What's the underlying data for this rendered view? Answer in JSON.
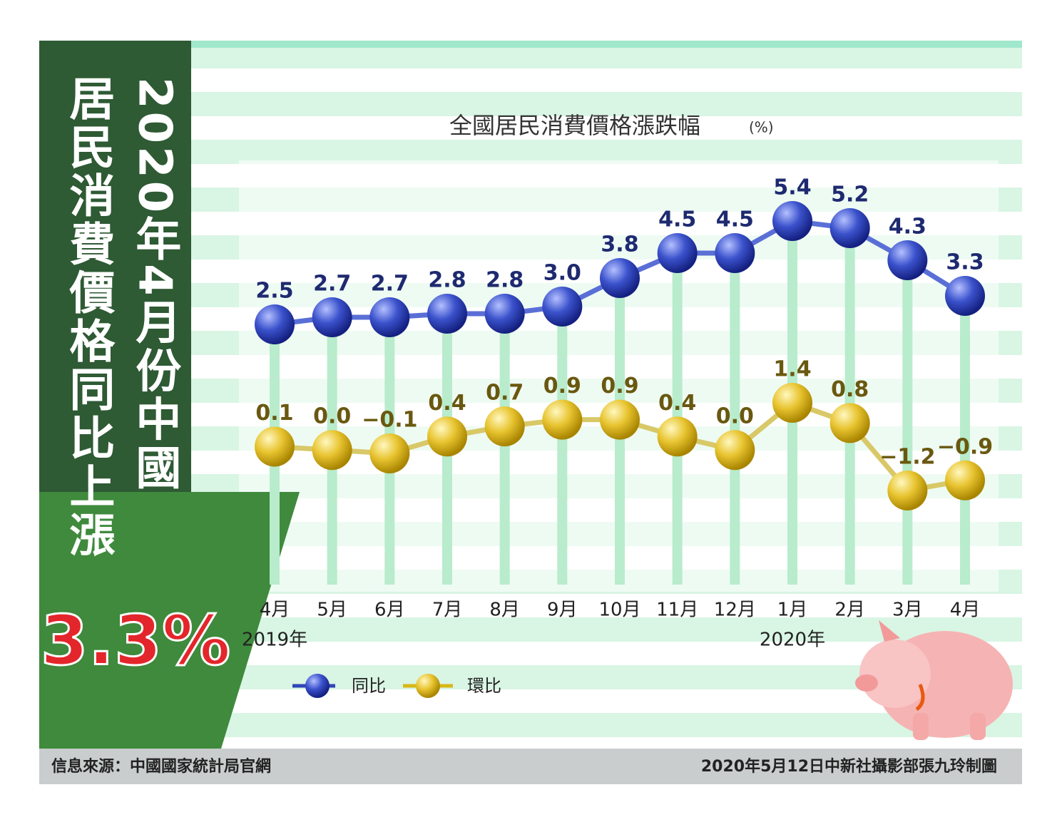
{
  "header": {
    "line1": "2020年4月份中國",
    "line2": "居民消費價格同比上漲",
    "highlight": "3.3%"
  },
  "chart_data": {
    "type": "line",
    "title": "全國居民消費價格漲跌幅",
    "unit": "(%)",
    "categories": [
      "4月",
      "5月",
      "6月",
      "7月",
      "8月",
      "9月",
      "10月",
      "11月",
      "12月",
      "1月",
      "2月",
      "3月",
      "4月"
    ],
    "years": [
      "2019年",
      null,
      null,
      null,
      null,
      null,
      null,
      null,
      null,
      "2020年",
      null,
      null,
      null
    ],
    "series": [
      {
        "name": "同比",
        "color": "#2f44b8",
        "line_color": "#5a6fd6",
        "values": [
          2.5,
          2.7,
          2.7,
          2.8,
          2.8,
          3.0,
          3.8,
          4.5,
          4.5,
          5.4,
          5.2,
          4.3,
          3.3
        ],
        "value_labels": [
          "2.5",
          "2.7",
          "2.7",
          "2.8",
          "2.8",
          "3.0",
          "3.8",
          "4.5",
          "4.5",
          "5.4",
          "5.2",
          "4.3",
          "3.3"
        ]
      },
      {
        "name": "環比",
        "color": "#d8b818",
        "line_color": "#d8c868",
        "values": [
          0.1,
          0.0,
          -0.1,
          0.4,
          0.7,
          0.9,
          0.9,
          0.4,
          0.0,
          1.4,
          0.8,
          -1.2,
          -0.9
        ],
        "value_labels": [
          "0.1",
          "0.0",
          "−0.1",
          "0.4",
          "0.7",
          "0.9",
          "0.9",
          "0.4",
          "0.0",
          "1.4",
          "0.8",
          "−1.2",
          "−0.9"
        ]
      }
    ]
  },
  "footer": {
    "source": "信息來源：中國國家統計局官網",
    "credit": "2020年5月12日中新社攝影部張九玲制圖"
  }
}
